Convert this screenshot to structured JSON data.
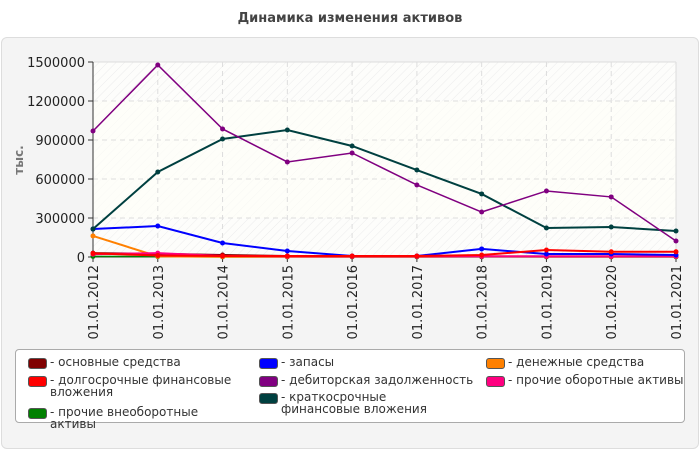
{
  "chart_data": {
    "type": "line",
    "title": "Динамика изменения активов",
    "ylabel": "тыс.",
    "xlabel": "",
    "ylim": [
      0,
      1500000
    ],
    "yticks": [
      "0",
      "300000",
      "600000",
      "900000",
      "1200000",
      "1500000"
    ],
    "grid": true,
    "legend_position": "bottom",
    "categories": [
      "01.01.2012",
      "01.01.2013",
      "01.01.2014",
      "01.01.2015",
      "01.01.2016",
      "01.01.2017",
      "01.01.2018",
      "01.01.2019",
      "01.01.2020",
      "01.01.2021"
    ],
    "series": [
      {
        "name": "- основные средства",
        "color": "#800000",
        "values": [
          30000,
          25000,
          15000,
          8000,
          5000,
          5000,
          5000,
          5000,
          5000,
          5000
        ]
      },
      {
        "name": "- долгосрочные финансовые вложения",
        "color": "#ff0000",
        "values": [
          28000,
          12000,
          8000,
          8000,
          8000,
          8000,
          15000,
          54000,
          40000,
          40000
        ]
      },
      {
        "name": "- прочие внеоборотные активы",
        "color": "#008000",
        "values": [
          5000,
          3000,
          1000,
          1000,
          1000,
          1000,
          1000,
          1000,
          1000,
          1000
        ]
      },
      {
        "name": "- запасы",
        "color": "#0000ff",
        "values": [
          215000,
          238000,
          108000,
          46000,
          8000,
          8000,
          62000,
          23000,
          23000,
          15000
        ]
      },
      {
        "name": "- дебиторская задолженность",
        "color": "#800080",
        "values": [
          969000,
          1477000,
          985000,
          731000,
          800000,
          554000,
          346000,
          508000,
          462000,
          123000
        ]
      },
      {
        "name": "- краткосрочные финансовые вложения",
        "color": "#004040",
        "values": [
          215000,
          654000,
          908000,
          977000,
          854000,
          669000,
          485000,
          223000,
          231000,
          200000
        ]
      },
      {
        "name": "- денежные средства",
        "color": "#ff8000",
        "values": [
          162000,
          5000,
          2000,
          2000,
          2000,
          2000,
          5000,
          3000,
          3000,
          3000
        ]
      },
      {
        "name": "- прочие оборотные активы",
        "color": "#ff0080",
        "values": [
          22000,
          30000,
          8000,
          5000,
          5000,
          5000,
          5000,
          5000,
          5000,
          5000
        ]
      }
    ]
  }
}
